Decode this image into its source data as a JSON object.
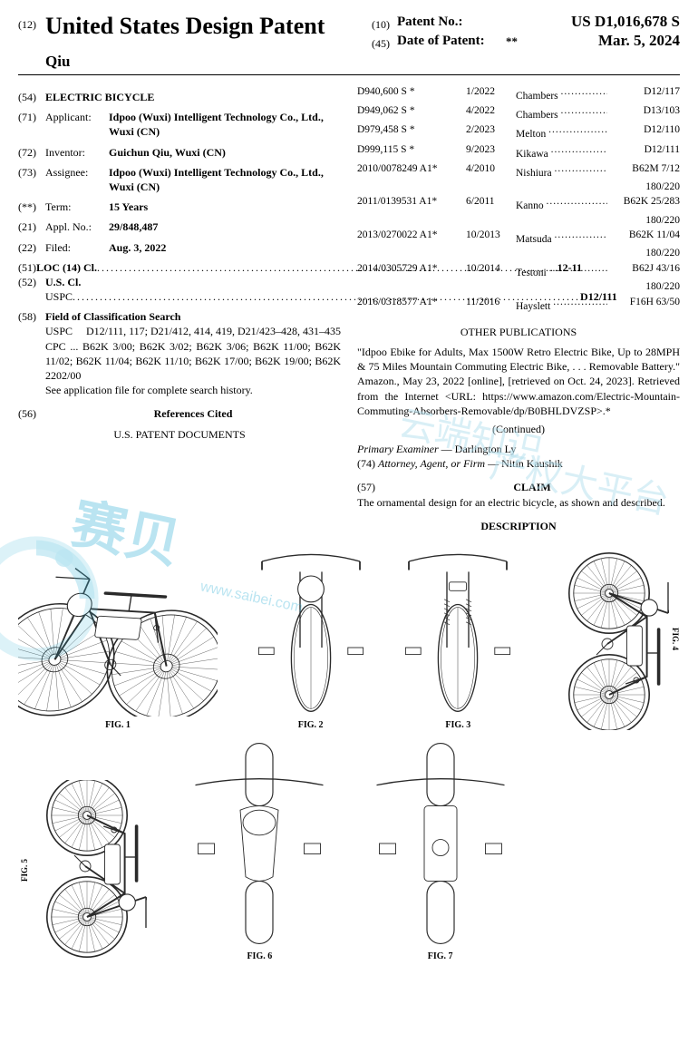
{
  "header": {
    "code_left": "(12)",
    "title": "United States Design Patent",
    "author": "Qiu",
    "code_r1": "(10)",
    "label_r1": "Patent No.:",
    "value_r1": "US D1,016,678 S",
    "code_r2": "(45)",
    "label_r2": "Date of Patent:",
    "star": "**",
    "value_r2": "Mar. 5, 2024"
  },
  "left_fields": {
    "f54_num": "(54)",
    "f54_val": "ELECTRIC BICYCLE",
    "f71_num": "(71)",
    "f71_lbl": "Applicant:",
    "f71_val": "Idpoo (Wuxi) Intelligent Technology Co., Ltd., Wuxi (CN)",
    "f72_num": "(72)",
    "f72_lbl": "Inventor:",
    "f72_val": "Guichun Qiu, Wuxi (CN)",
    "f73_num": "(73)",
    "f73_lbl": "Assignee:",
    "f73_val": "Idpoo (Wuxi) Intelligent Technology Co., Ltd., Wuxi (CN)",
    "term_num": "(**)",
    "term_lbl": "Term:",
    "term_val": "15 Years",
    "f21_num": "(21)",
    "f21_lbl": "Appl. No.:",
    "f21_val": "29/848,487",
    "f22_num": "(22)",
    "f22_lbl": "Filed:",
    "f22_val": "Aug. 3, 2022",
    "f51_num": "(51)",
    "f51_lbl": "LOC (14) Cl.",
    "f51_val": "12-11",
    "f52_num": "(52)",
    "f52_lbl": "U.S. Cl.",
    "f52_sub": "USPC",
    "f52_val": "D12/111",
    "f58_num": "(58)",
    "f58_lbl": "Field of Classification Search",
    "f58_uspc": "USPC",
    "f58_uspc_val": "D12/111, 117; D21/412, 414, 419, D21/423–428, 431–435",
    "f58_cpc": "CPC ... B62K 3/00; B62K 3/02; B62K 3/06; B62K 11/00; B62K 11/02; B62K 11/04; B62K 11/10; B62K 17/00; B62K 19/00; B62K 2202/00",
    "f58_note": "See application file for complete search history.",
    "f56_num": "(56)",
    "f56_lbl": "References Cited",
    "uspat_heading": "U.S. PATENT DOCUMENTS"
  },
  "refs": [
    {
      "a": "D940,600 S",
      "s": "*",
      "b": "1/2022",
      "c": "Chambers",
      "d": "D12/117"
    },
    {
      "a": "D949,062 S",
      "s": "*",
      "b": "4/2022",
      "c": "Chambers",
      "d": "D13/103"
    },
    {
      "a": "D979,458 S",
      "s": "*",
      "b": "2/2023",
      "c": "Melton",
      "d": "D12/110"
    },
    {
      "a": "D999,115 S",
      "s": "*",
      "b": "9/2023",
      "c": "Kikawa",
      "d": "D12/111"
    },
    {
      "a": "2010/0078249 A1*",
      "s": "",
      "b": "4/2010",
      "c": "Nishiura",
      "d": "B62M 7/12",
      "sub": "180/220"
    },
    {
      "a": "2011/0139531 A1*",
      "s": "",
      "b": "6/2011",
      "c": "Kanno",
      "d": "B62K 25/283",
      "sub": "180/220"
    },
    {
      "a": "2013/0270022 A1*",
      "s": "",
      "b": "10/2013",
      "c": "Matsuda",
      "d": "B62K 11/04",
      "sub": "180/220"
    },
    {
      "a": "2014/0305729 A1*",
      "s": "",
      "b": "10/2014",
      "c": "Testoni",
      "d": "B62J 43/16",
      "sub": "180/220"
    },
    {
      "a": "2016/0318577 A1*",
      "s": "",
      "b": "11/2016",
      "c": "Hayslett",
      "d": "F16H 63/50"
    }
  ],
  "right": {
    "other_pub_heading": "OTHER PUBLICATIONS",
    "other_pub_text": "\"Idpoo Ebike for Adults, Max 1500W Retro Electric Bike, Up to 28MPH & 75 Miles Mountain Commuting Electric Bike, . . . Removable Battery.\" Amazon., May 23, 2022 [online], [retrieved on Oct. 24, 2023]. Retrieved from the Internet <URL: https://www.amazon.com/Electric-Mountain-Commuting-Absorbers-Removable/dp/B0BHLDVZSP>.*",
    "continued": "(Continued)",
    "examiner_lbl": "Primary Examiner",
    "examiner_val": " — Darlington Ly",
    "attorney_num": "(74)",
    "attorney_lbl": "Attorney, Agent, or Firm",
    "attorney_val": " — Nitin Kaushik",
    "claim_num": "(57)",
    "claim_heading": "CLAIM",
    "claim_text": "The ornamental design for an electric bicycle, as shown and described.",
    "desc_heading": "DESCRIPTION"
  },
  "figs": {
    "f1": "FIG. 1",
    "f2": "FIG. 2",
    "f3": "FIG. 3",
    "f4": "FIG. 4",
    "f5": "FIG. 5",
    "f6": "FIG. 6",
    "f7": "FIG. 7"
  },
  "watermark": {
    "chars": "赛贝",
    "url": "www.saibei.com",
    "t2": "云端知识",
    "t3": "产权大平台"
  },
  "drawing": {
    "stroke": "#2a2a2a",
    "stroke_width": 0.9,
    "wheel_spokes": 28
  }
}
